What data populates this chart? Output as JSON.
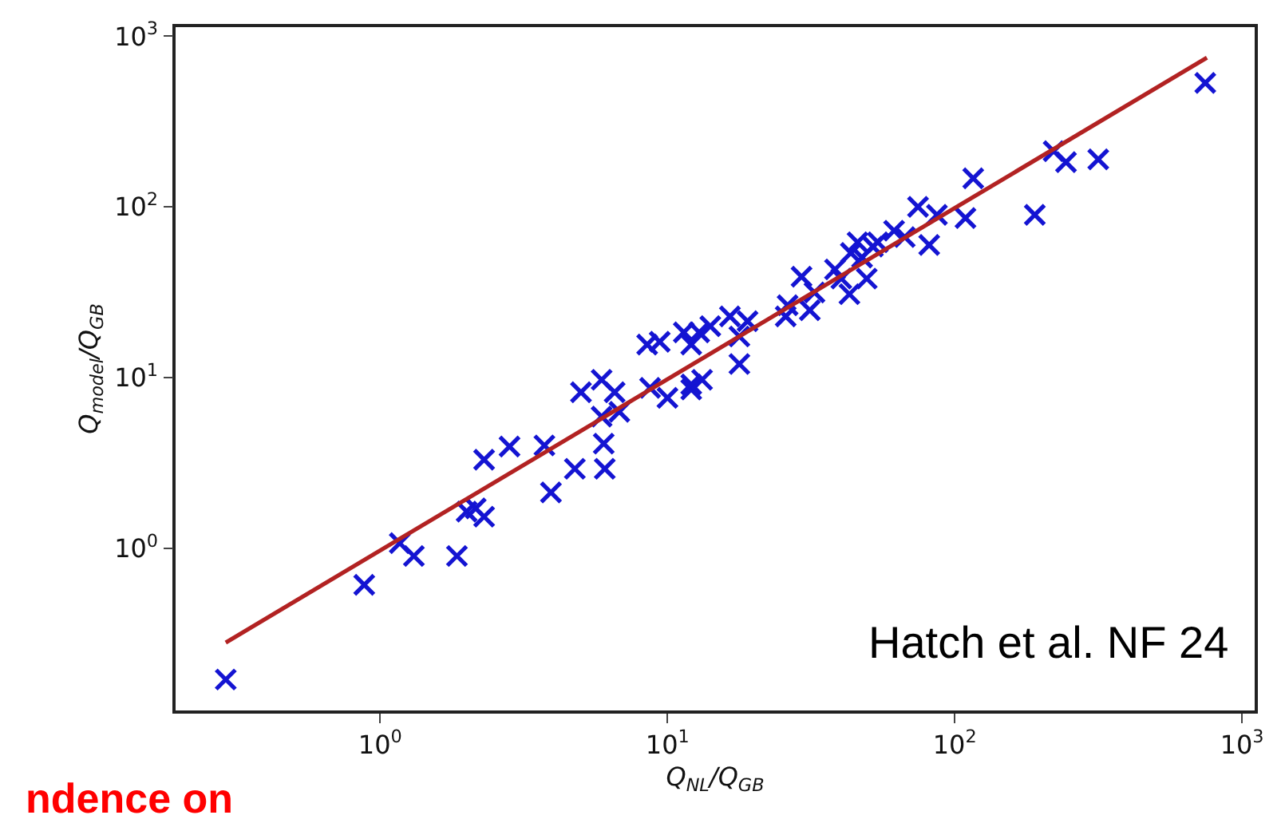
{
  "chart_data": {
    "type": "scatter",
    "xlabel": "Q$_{NL}$/Q$_{GB}$",
    "ylabel": "Q$_{model}$/Q$_{GB}$",
    "log": "xy",
    "legend": false,
    "xlim": [
      0.194,
      1107
    ],
    "ylim": [
      0.112,
      1130
    ],
    "xticks": [
      {
        "value": 1,
        "label": "10$^{0}$"
      },
      {
        "value": 10,
        "label": "10$^{1}$"
      },
      {
        "value": 100,
        "label": "10$^{2}$"
      },
      {
        "value": 1000,
        "label": "10$^{3}$"
      }
    ],
    "yticks": [
      {
        "value": 1,
        "label": "10$^{0}$"
      },
      {
        "value": 10,
        "label": "10$^{1}$"
      },
      {
        "value": 100,
        "label": "10$^{2}$"
      },
      {
        "value": 1000,
        "label": "10$^{3}$"
      }
    ],
    "annotations": [
      "Hatch et al. NF 24",
      "ndence on"
    ],
    "series": [
      {
        "marker": "cross",
        "color": "#1414d2",
        "x": [
          0.29,
          0.88,
          1.17,
          1.31,
          1.85,
          2.0,
          2.15,
          2.3,
          2.3,
          2.82,
          3.73,
          3.93,
          4.76,
          5.0,
          5.9,
          6.55,
          5.9,
          6.0,
          6.05,
          6.8,
          8.5,
          9.4,
          8.7,
          10.0,
          11.4,
          12.1,
          12.1,
          12.9,
          12.1,
          13.2,
          14.1,
          16.5,
          17.8,
          17.8,
          19.0,
          25.8,
          26.2,
          29.3,
          31.3,
          32.5,
          38.3,
          40.3,
          43,
          43.5,
          45.9,
          47.6,
          49.4,
          51.9,
          54,
          61.5,
          67,
          74.5,
          81.5,
          86.7,
          109,
          116,
          190,
          221,
          244,
          316,
          745
        ],
        "values": [
          0.17,
          0.61,
          1.07,
          0.9,
          0.9,
          1.64,
          1.71,
          1.53,
          3.3,
          3.94,
          4.0,
          2.12,
          2.92,
          8.2,
          9.7,
          8.2,
          5.9,
          4.1,
          2.92,
          6.3,
          15.6,
          16.2,
          8.7,
          7.6,
          18.4,
          15.6,
          8.5,
          18.4,
          9.1,
          9.7,
          20,
          22.8,
          12.0,
          17.4,
          21.4,
          22.8,
          26.5,
          39,
          24.8,
          31.5,
          43,
          38,
          30.8,
          53.7,
          62,
          50.5,
          38,
          58.5,
          62,
          72.5,
          66.5,
          100,
          59.8,
          89.8,
          86,
          147,
          89.8,
          212,
          183,
          190,
          532
        ]
      },
      {
        "type": "line",
        "marker": "none",
        "line_style": "solid",
        "color": "#b22222",
        "x": [
          0.29,
          755
        ],
        "values": [
          0.28,
          748
        ]
      }
    ]
  }
}
